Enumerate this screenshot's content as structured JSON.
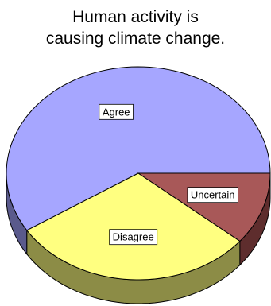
{
  "chart_data": {
    "type": "pie",
    "title_lines": [
      "Human activity is",
      "causing climate change."
    ],
    "slices": [
      {
        "label": "Agree",
        "value": 59,
        "color": "#a6a6ff",
        "side": "#5a5a8c"
      },
      {
        "label": "Disagree",
        "value": 30,
        "color": "#ffff80",
        "side": "#8c8c46"
      },
      {
        "label": "Uncertain",
        "value": 11,
        "color": "#a85858",
        "side": "#5e2d2d"
      }
    ],
    "legend": "none"
  }
}
